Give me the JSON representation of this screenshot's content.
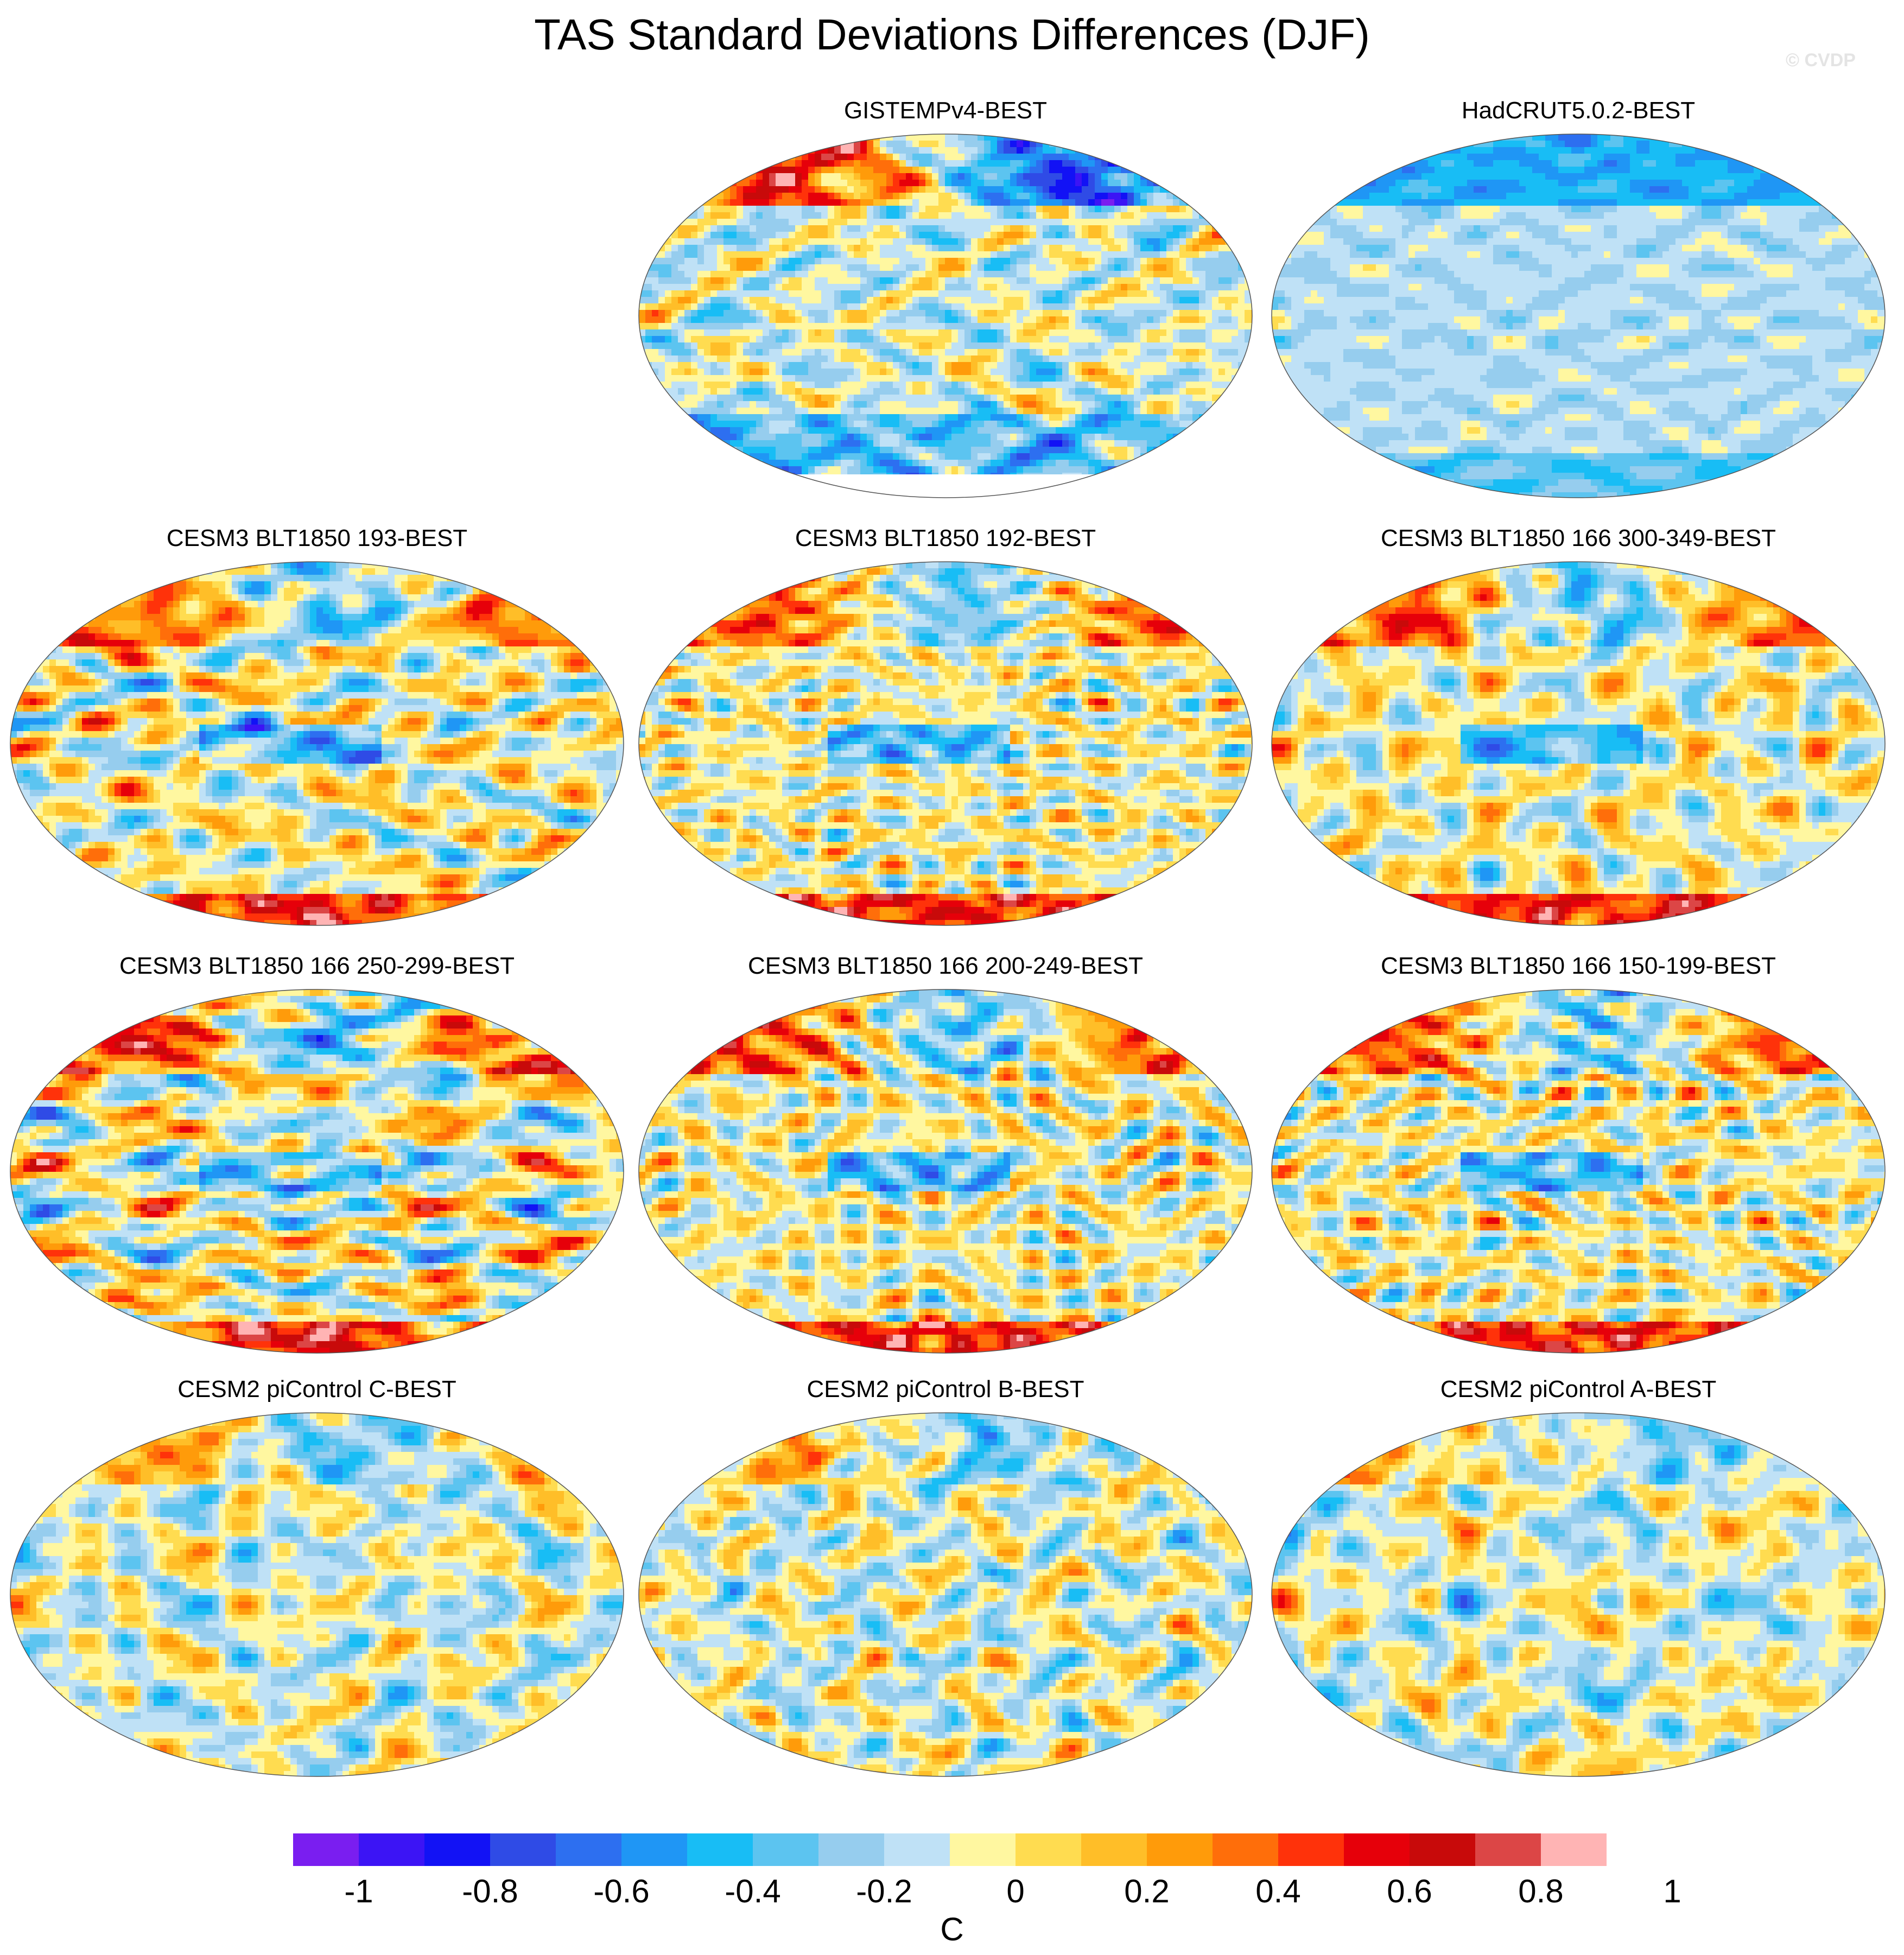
{
  "title": "TAS Standard Deviations Differences (DJF)",
  "watermark": "© CVDP",
  "panels": [
    {
      "label": "GISTEMPv4-BEST",
      "style": "obs-mixed",
      "seed": 11
    },
    {
      "label": "HadCRUT5.0.2-BEST",
      "style": "obs-cool",
      "seed": 23
    },
    {
      "label": "CESM3 BLT1850 193-BEST",
      "style": "model",
      "seed": 37
    },
    {
      "label": "CESM3 BLT1850 192-BEST",
      "style": "model",
      "seed": 41
    },
    {
      "label": "CESM3 BLT1850 166 300-349-BEST",
      "style": "model",
      "seed": 53
    },
    {
      "label": "CESM3 BLT1850 166 250-299-BEST",
      "style": "model",
      "seed": 61
    },
    {
      "label": "CESM3 BLT1850 166 200-249-BEST",
      "style": "model",
      "seed": 71
    },
    {
      "label": "CESM3 BLT1850 166 150-199-BEST",
      "style": "model",
      "seed": 83
    },
    {
      "label": "CESM2 piControl C-BEST",
      "style": "picontrol",
      "seed": 97
    },
    {
      "label": "CESM2 piControl B-BEST",
      "style": "picontrol",
      "seed": 101
    },
    {
      "label": "CESM2 piControl A-BEST",
      "style": "picontrol",
      "seed": 113
    }
  ],
  "colorbar": {
    "unit": "C",
    "tick_labels": [
      "-1",
      "-0.8",
      "-0.6",
      "-0.4",
      "-0.2",
      "0",
      "0.2",
      "0.4",
      "0.6",
      "0.8",
      "1"
    ],
    "colors": [
      "#7a1ef0",
      "#3c14f5",
      "#1212f5",
      "#2f4be6",
      "#2d6ff0",
      "#1f96f5",
      "#18bdf5",
      "#5cc4f0",
      "#96cdee",
      "#bfe1f6",
      "#fff7a0",
      "#ffdc50",
      "#ffbe28",
      "#ff9b0a",
      "#ff6e0a",
      "#ff320a",
      "#e6000a",
      "#c80a0a",
      "#dc4646",
      "#ffb4b4"
    ]
  }
}
